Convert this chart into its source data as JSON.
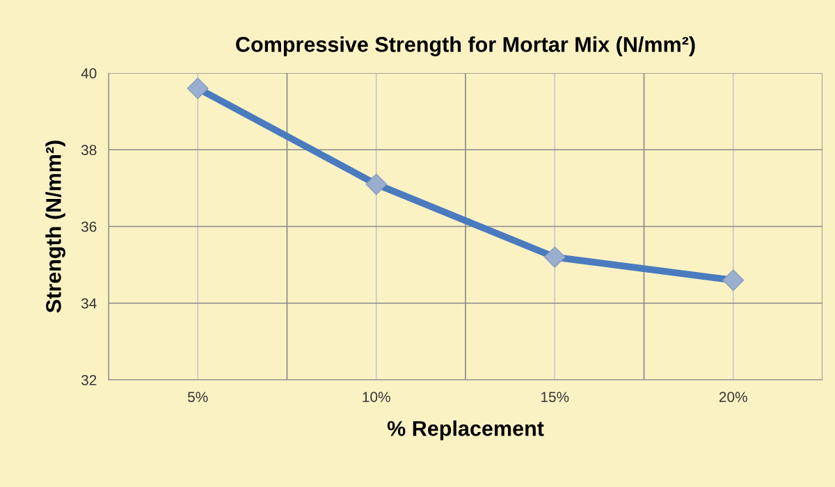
{
  "chart_data": {
    "type": "line",
    "title": "Compressive Strength for Mortar Mix (N/mm²)",
    "xlabel": "% Replacement",
    "ylabel": "Strength (N/mm²)",
    "categories": [
      "5%",
      "10%",
      "15%",
      "20%"
    ],
    "series": [
      {
        "color": "#4a7bbf",
        "values": [
          39.6,
          37.1,
          35.2,
          34.6
        ]
      }
    ],
    "ylim": [
      32,
      40
    ],
    "yticks": [
      32,
      34,
      36,
      38,
      40
    ],
    "grid": true,
    "marker": "diamond",
    "line_style": "solid"
  }
}
